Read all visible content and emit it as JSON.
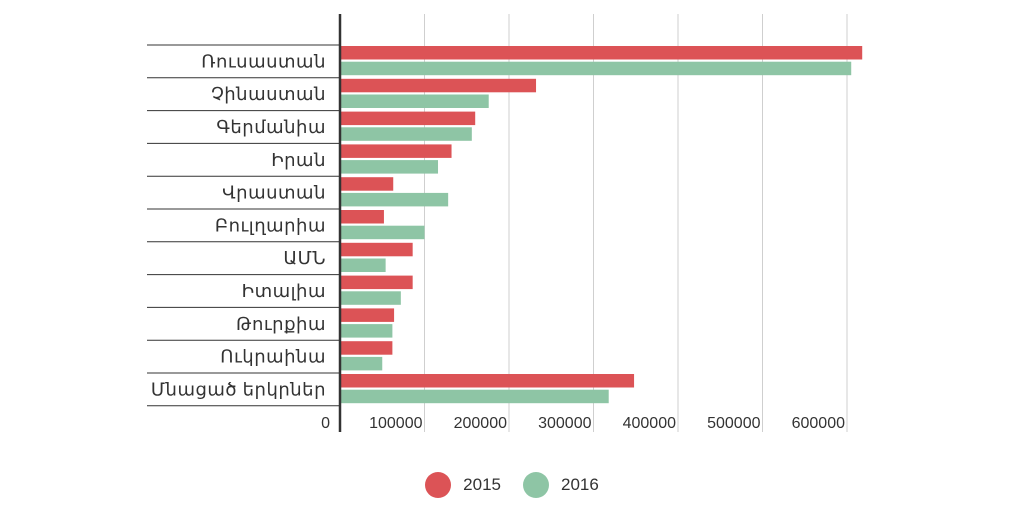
{
  "chart_data": {
    "type": "bar",
    "orientation": "horizontal",
    "categories": [
      "Ռուսաստան",
      "Չինաստան",
      "Գերմանիա",
      "Իրան",
      "Վրաստան",
      "Բուլղարիա",
      "ԱՄՆ",
      "Իտալիա",
      "Թուրքիա",
      "Ուկրաինա",
      "Մնացած երկրներ"
    ],
    "series": [
      {
        "name": "2015",
        "color": "#dc5356",
        "values": [
          618000,
          232000,
          160000,
          132000,
          63000,
          52000,
          86000,
          86000,
          64000,
          62000,
          348000
        ]
      },
      {
        "name": "2016",
        "color": "#8ec5a5",
        "values": [
          605000,
          176000,
          156000,
          116000,
          128000,
          100000,
          54000,
          72000,
          62000,
          50000,
          318000
        ]
      }
    ],
    "xlim": [
      0,
      640000
    ],
    "xticks": [
      0,
      100000,
      200000,
      300000,
      400000,
      500000,
      600000
    ],
    "xtick_labels": [
      "0",
      "100000",
      "200000",
      "300000",
      "400000",
      "500000",
      "600000"
    ],
    "grid": true,
    "legend_position": "bottom-center",
    "title": "",
    "xlabel": "",
    "ylabel": ""
  }
}
